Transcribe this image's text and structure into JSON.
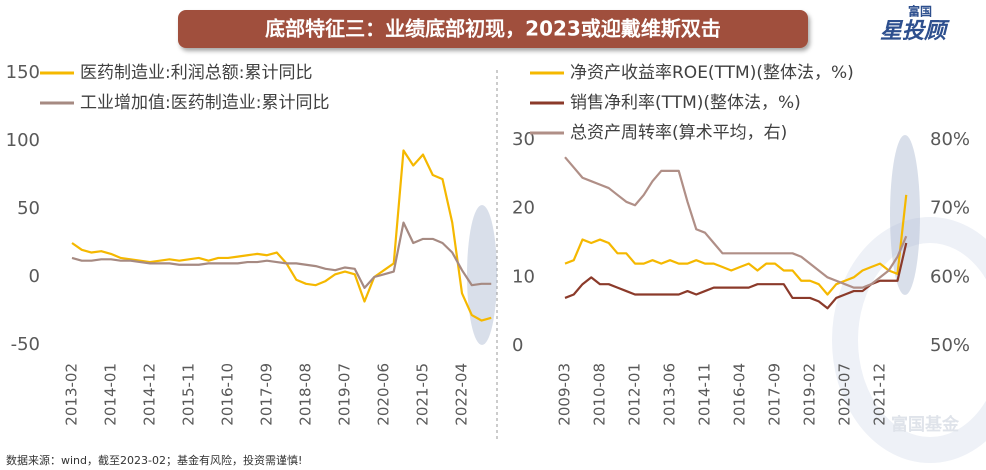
{
  "title": "底部特征三：业绩底部初现，2023或迎戴维斯双击",
  "logo": [
    "富国",
    "星投顾"
  ],
  "watermark": "富国基金",
  "source": "数据来源：wind，截至2023-02；基金有风险，投资需谨慎!",
  "chart_data": [
    {
      "type": "line",
      "categories": [
        "2013-02",
        null,
        null,
        null,
        "2014-01",
        null,
        null,
        null,
        "2014-12",
        null,
        null,
        null,
        "2015-11",
        null,
        null,
        null,
        "2016-10",
        null,
        null,
        null,
        "2017-09",
        null,
        null,
        null,
        "2018-08",
        null,
        null,
        null,
        "2019-07",
        null,
        null,
        null,
        "2020-06",
        null,
        null,
        null,
        "2021-05",
        null,
        null,
        null,
        "2022-04",
        null,
        null,
        null
      ],
      "ylim": [
        -50,
        150
      ],
      "yticks": [
        -50,
        0,
        50,
        100,
        150
      ],
      "series": [
        {
          "name": "医药制造业:利润总额:累计同比",
          "color": "#f5b800",
          "values": [
            25,
            20,
            18,
            19,
            17,
            14,
            13,
            12,
            11,
            12,
            13,
            12,
            13,
            14,
            12,
            14,
            14,
            15,
            16,
            17,
            16,
            18,
            10,
            -2,
            -5,
            -6,
            -3,
            2,
            4,
            2,
            -18,
            0,
            5,
            10,
            93,
            82,
            90,
            75,
            72,
            40,
            -12,
            -28,
            -32,
            -30
          ]
        },
        {
          "name": "工业增加值:医药制造业:累计同比",
          "color": "#a68a82",
          "values": [
            14,
            12,
            12,
            13,
            13,
            12,
            12,
            11,
            10,
            10,
            10,
            9,
            9,
            9,
            10,
            10,
            10,
            10,
            11,
            11,
            12,
            11,
            10,
            10,
            9,
            8,
            6,
            5,
            7,
            6,
            -8,
            0,
            2,
            4,
            40,
            25,
            28,
            28,
            25,
            18,
            5,
            -6,
            -5,
            -5
          ]
        }
      ]
    },
    {
      "type": "line",
      "categories": [
        "2009-03",
        null,
        null,
        null,
        "2010-08",
        null,
        null,
        null,
        "2012-01",
        null,
        null,
        null,
        "2013-06",
        null,
        null,
        null,
        "2014-11",
        null,
        null,
        null,
        "2016-04",
        null,
        null,
        null,
        "2017-09",
        null,
        null,
        null,
        "2019-02",
        null,
        null,
        null,
        "2020-07",
        null,
        null,
        null,
        "2021-12",
        null,
        null,
        null
      ],
      "ylim": [
        0,
        30
      ],
      "yticks": [
        0,
        10,
        20,
        30
      ],
      "y2lim": [
        50,
        80
      ],
      "y2ticks": [
        {
          "value": 50,
          "label": "50%"
        },
        {
          "value": 60,
          "label": "60%"
        },
        {
          "value": 70,
          "label": "70%"
        },
        {
          "value": 80,
          "label": "80%"
        }
      ],
      "series": [
        {
          "name": "净资产收益率ROE(TTM)(整体法，%)",
          "color": "#f5b800",
          "values": [
            12,
            12.5,
            15.5,
            15,
            15.5,
            15,
            13.5,
            13.5,
            12,
            12,
            12.5,
            12,
            12.5,
            12,
            12,
            12.5,
            12,
            12,
            11.5,
            11,
            11.5,
            12,
            11,
            12,
            12,
            11,
            11,
            9.5,
            9.5,
            9,
            7.5,
            9,
            9.5,
            10,
            11,
            11.5,
            12,
            11,
            10.5,
            22
          ]
        },
        {
          "name": "销售净利率(TTM)(整体法，%)",
          "color": "#8b3a2a",
          "values": [
            7,
            7.5,
            9,
            10,
            9,
            9,
            8.5,
            8,
            7.5,
            7.5,
            7.5,
            7.5,
            7.5,
            7.5,
            8,
            7.5,
            8,
            8.5,
            8.5,
            8.5,
            8.5,
            8.5,
            9,
            9,
            9,
            9,
            7,
            7,
            7,
            6.5,
            5.5,
            7,
            7.5,
            8,
            8,
            9,
            9.5,
            9.5,
            9.5,
            15
          ]
        },
        {
          "name": "总资产周转率(算术平均，右)",
          "color": "#b08f87",
          "axis": "y2",
          "values": [
            77.5,
            76,
            74.5,
            74,
            73.5,
            73,
            72,
            71,
            70.5,
            72,
            74,
            75.5,
            75.5,
            75.5,
            71,
            67,
            66.5,
            65,
            63.5,
            63.5,
            63.5,
            63.5,
            63.5,
            63.5,
            63.5,
            63.5,
            63.5,
            63,
            62,
            61,
            60,
            59.5,
            59,
            58.5,
            58.5,
            59,
            60,
            61,
            63,
            66
          ]
        }
      ]
    }
  ]
}
